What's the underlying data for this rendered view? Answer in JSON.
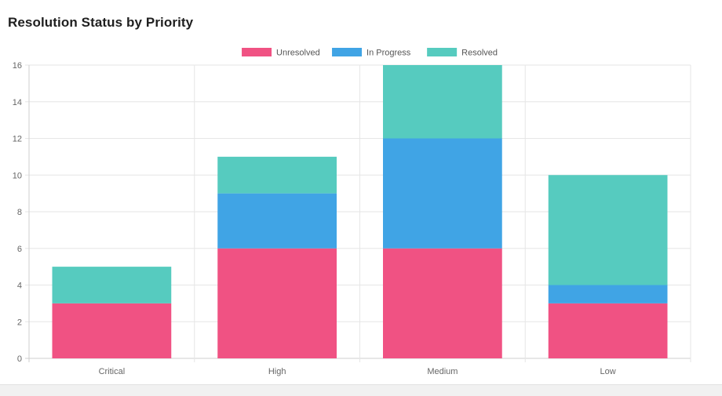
{
  "chart_data": {
    "type": "bar",
    "stacked": true,
    "title": "Resolution Status by Priority",
    "categories": [
      "Critical",
      "High",
      "Medium",
      "Low"
    ],
    "series": [
      {
        "name": "Unresolved",
        "color": "#f05283",
        "values": [
          3,
          6,
          6,
          3
        ]
      },
      {
        "name": "In Progress",
        "color": "#40a4e5",
        "values": [
          0,
          3,
          6,
          1
        ]
      },
      {
        "name": "Resolved",
        "color": "#56cbbf",
        "values": [
          2,
          2,
          4,
          6
        ]
      }
    ],
    "ylim": [
      0,
      16
    ],
    "yticks": [
      0,
      2,
      4,
      6,
      8,
      10,
      12,
      14,
      16
    ],
    "grid": true,
    "legend": "top-center"
  }
}
